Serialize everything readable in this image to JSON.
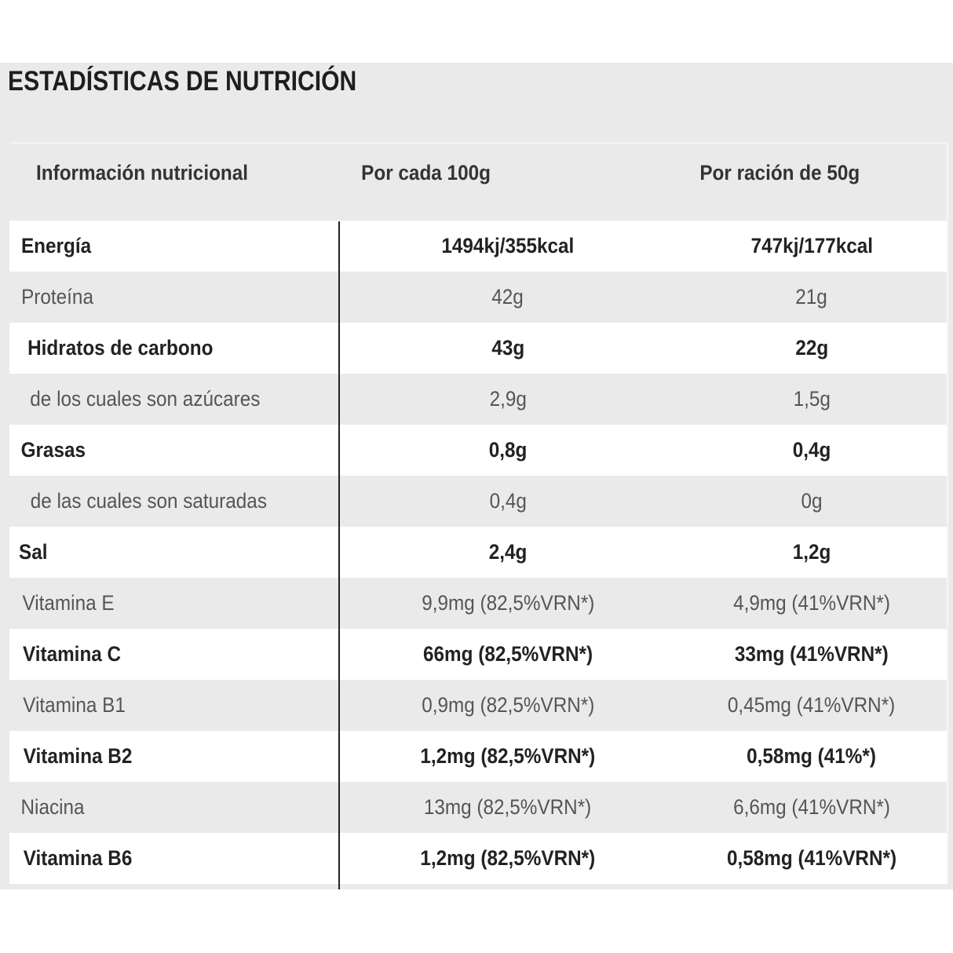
{
  "title": "ESTADÍSTICAS DE NUTRICIÓN",
  "table": {
    "headers": [
      "Información nutricional",
      "Por cada 100g",
      "Por ración de 50g"
    ],
    "rows": [
      {
        "label": "Energía",
        "per100": "1494kj/355kcal",
        "per50": "747kj/177kcal",
        "bold": true
      },
      {
        "label": "Proteína",
        "per100": "42g",
        "per50": "21g",
        "bold": false
      },
      {
        "label": "Hidratos de carbono",
        "per100": "43g",
        "per50": "22g",
        "bold": true
      },
      {
        "label": "de los cuales son azúcares",
        "per100": "2,9g",
        "per50": "1,5g",
        "bold": false
      },
      {
        "label": "Grasas",
        "per100": "0,8g",
        "per50": "0,4g",
        "bold": true
      },
      {
        "label": "de las cuales son saturadas",
        "per100": "0,4g",
        "per50": "0g",
        "bold": false
      },
      {
        "label": "Sal",
        "per100": "2,4g",
        "per50": "1,2g",
        "bold": true
      },
      {
        "label": "Vitamina E",
        "per100": "9,9mg (82,5%VRN*)",
        "per50": "4,9mg (41%VRN*)",
        "bold": false
      },
      {
        "label": "Vitamina C",
        "per100": "66mg (82,5%VRN*)",
        "per50": "33mg (41%VRN*)",
        "bold": true
      },
      {
        "label": "Vitamina B1",
        "per100": "0,9mg (82,5%VRN*)",
        "per50": "0,45mg (41%VRN*)",
        "bold": false
      },
      {
        "label": "Vitamina B2",
        "per100": "1,2mg (82,5%VRN*)",
        "per50": "0,58mg (41%*)",
        "bold": true
      },
      {
        "label": "Niacina",
        "per100": "13mg (82,5%VRN*)",
        "per50": "6,6mg (41%VRN*)",
        "bold": false
      },
      {
        "label": "Vitamina B6",
        "per100": "1,2mg (82,5%VRN*)",
        "per50": "0,58mg (41%VRN*)",
        "bold": true
      }
    ]
  }
}
